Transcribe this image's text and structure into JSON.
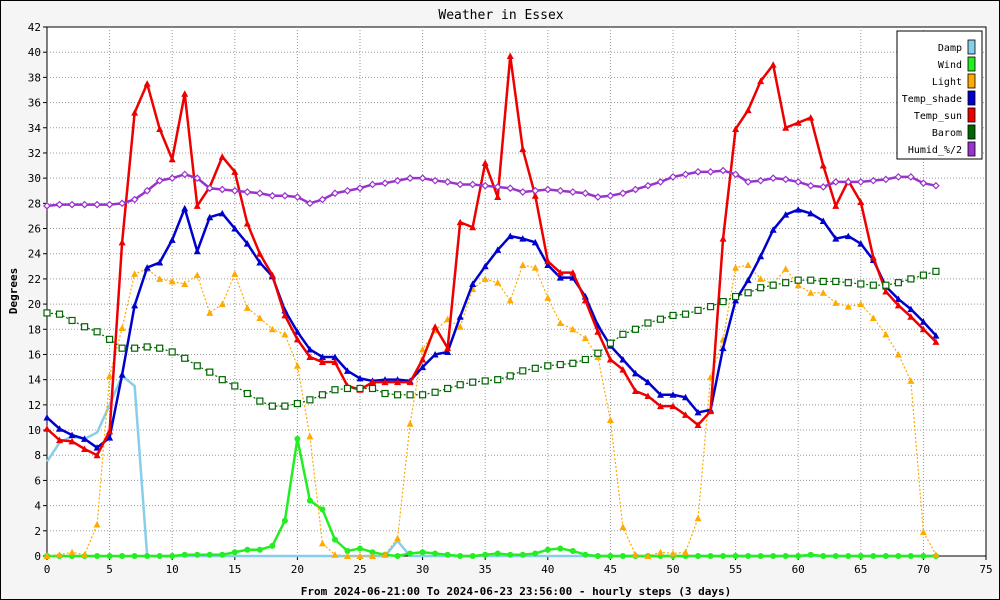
{
  "chart_data": {
    "type": "line",
    "title": "Weather in Essex",
    "xlabel": "From 2024-06-21:00 To 2024-06-23 23:56:00 - hourly steps (3 days)",
    "ylabel": "Degrees",
    "xlim": [
      0,
      75
    ],
    "ylim": [
      0,
      42
    ],
    "x_ticks": [
      0,
      5,
      10,
      15,
      20,
      25,
      30,
      35,
      40,
      45,
      50,
      55,
      60,
      65,
      70,
      75
    ],
    "y_ticks": [
      0,
      2,
      4,
      6,
      8,
      10,
      12,
      14,
      16,
      18,
      20,
      22,
      24,
      26,
      28,
      30,
      32,
      34,
      36,
      38,
      40,
      42
    ],
    "grid": true,
    "legend_position": "top-right",
    "series": [
      {
        "name": "Damp",
        "color": "#87ceeb",
        "marker": "none",
        "x": [
          0,
          1,
          2,
          3,
          4,
          5,
          6,
          7,
          8,
          9,
          10,
          11,
          12,
          13,
          14,
          15,
          16,
          17,
          18,
          19,
          20,
          21,
          22,
          23,
          24,
          25,
          26,
          27,
          28,
          29,
          30,
          31,
          32,
          33,
          34,
          35,
          36,
          37,
          38,
          39,
          40,
          41,
          42,
          43,
          44,
          45,
          46,
          47,
          48,
          49,
          50,
          51,
          52,
          53,
          54,
          55,
          56,
          57,
          58,
          59,
          60,
          61,
          62,
          63,
          64,
          65,
          66,
          67,
          68,
          69,
          70,
          71
        ],
        "values": [
          7.5,
          9.0,
          9.5,
          9.3,
          9.8,
          12.0,
          14.3,
          13.5,
          0,
          0,
          0,
          0,
          0,
          0,
          0,
          0,
          0,
          0,
          0,
          0,
          0,
          0,
          0,
          0,
          0,
          0,
          0,
          0,
          1.2,
          0,
          0,
          0,
          0,
          0,
          0,
          0,
          0,
          0,
          0,
          0,
          0,
          0,
          0,
          0,
          0,
          0,
          0,
          0,
          0,
          0,
          0,
          0,
          0,
          0,
          0,
          0,
          0,
          0,
          0,
          0,
          0,
          0,
          0,
          0,
          0,
          0,
          0,
          0,
          0,
          0,
          0,
          0
        ]
      },
      {
        "name": "Wind",
        "color": "#22ee22",
        "marker": "circle",
        "x": [
          0,
          1,
          2,
          3,
          4,
          5,
          6,
          7,
          8,
          9,
          10,
          11,
          12,
          13,
          14,
          15,
          16,
          17,
          18,
          19,
          20,
          21,
          22,
          23,
          24,
          25,
          26,
          27,
          28,
          29,
          30,
          31,
          32,
          33,
          34,
          35,
          36,
          37,
          38,
          39,
          40,
          41,
          42,
          43,
          44,
          45,
          46,
          47,
          48,
          49,
          50,
          51,
          52,
          53,
          54,
          55,
          56,
          57,
          58,
          59,
          60,
          61,
          62,
          63,
          64,
          65,
          66,
          67,
          68,
          69,
          70,
          71
        ],
        "values": [
          0,
          0,
          0,
          0,
          0,
          0,
          0,
          0,
          0,
          0,
          0,
          0.1,
          0.1,
          0.1,
          0.1,
          0.3,
          0.5,
          0.5,
          0.8,
          2.8,
          9.3,
          4.4,
          3.7,
          1.3,
          0.4,
          0.6,
          0.3,
          0.1,
          0,
          0.2,
          0.3,
          0.2,
          0.1,
          0,
          0,
          0.1,
          0.2,
          0.1,
          0.1,
          0.2,
          0.5,
          0.6,
          0.4,
          0.1,
          0,
          0,
          0,
          0,
          0,
          0,
          0,
          0,
          0,
          0,
          0,
          0,
          0,
          0,
          0,
          0,
          0,
          0.1,
          0,
          0,
          0,
          0,
          0,
          0,
          0,
          0,
          0,
          0
        ]
      },
      {
        "name": "Light",
        "color": "#ffaa00",
        "marker": "triangle",
        "x": [
          0,
          1,
          2,
          3,
          4,
          5,
          6,
          7,
          8,
          9,
          10,
          11,
          12,
          13,
          14,
          15,
          16,
          17,
          18,
          19,
          20,
          21,
          22,
          23,
          24,
          25,
          26,
          27,
          28,
          29,
          30,
          31,
          32,
          33,
          34,
          35,
          36,
          37,
          38,
          39,
          40,
          41,
          42,
          43,
          44,
          45,
          46,
          47,
          48,
          49,
          50,
          51,
          52,
          53,
          54,
          55,
          56,
          57,
          58,
          59,
          60,
          61,
          62,
          63,
          64,
          65,
          66,
          67,
          68,
          69,
          70,
          71
        ],
        "values": [
          0,
          0.1,
          0.3,
          0.1,
          2.5,
          14.3,
          18.1,
          22.4,
          22.8,
          22.0,
          21.8,
          21.6,
          22.3,
          19.3,
          20.0,
          22.4,
          19.7,
          18.9,
          18.0,
          17.6,
          15.1,
          9.5,
          1.0,
          0.1,
          0,
          0,
          0,
          0.1,
          1.4,
          10.5,
          16.4,
          17.9,
          18.8,
          18.2,
          21.2,
          22.0,
          21.7,
          20.3,
          23.1,
          22.9,
          20.5,
          18.5,
          18.0,
          17.3,
          15.8,
          10.8,
          2.3,
          0.1,
          0,
          0.3,
          0.2,
          0.3,
          3.0,
          14.2,
          17.2,
          22.9,
          23.1,
          22.0,
          21.6,
          22.8,
          21.5,
          20.9,
          20.9,
          20.1,
          19.8,
          20.0,
          18.9,
          17.6,
          16.0,
          13.9,
          1.9,
          0.1
        ]
      },
      {
        "name": "Temp_shade",
        "color": "#0000cc",
        "marker": "triangle",
        "x": [
          0,
          1,
          2,
          3,
          4,
          5,
          6,
          7,
          8,
          9,
          10,
          11,
          12,
          13,
          14,
          15,
          16,
          17,
          18,
          19,
          20,
          21,
          22,
          23,
          24,
          25,
          26,
          27,
          28,
          29,
          30,
          31,
          32,
          33,
          34,
          35,
          36,
          37,
          38,
          39,
          40,
          41,
          42,
          43,
          44,
          45,
          46,
          47,
          48,
          49,
          50,
          51,
          52,
          53,
          54,
          55,
          56,
          57,
          58,
          59,
          60,
          61,
          62,
          63,
          64,
          65,
          66,
          67,
          68,
          69,
          70,
          71
        ],
        "values": [
          11.0,
          10.1,
          9.6,
          9.3,
          8.6,
          9.4,
          14.4,
          19.9,
          22.9,
          23.3,
          25.1,
          27.6,
          24.2,
          26.9,
          27.2,
          26.0,
          24.8,
          23.3,
          22.2,
          19.5,
          17.8,
          16.4,
          15.8,
          15.8,
          14.7,
          14.1,
          13.9,
          14.0,
          14.0,
          13.9,
          15.0,
          16.0,
          16.2,
          19.0,
          21.6,
          23.0,
          24.3,
          25.4,
          25.2,
          24.9,
          23.1,
          22.1,
          22.1,
          20.6,
          18.3,
          16.7,
          15.6,
          14.5,
          13.8,
          12.8,
          12.8,
          12.6,
          11.4,
          11.6,
          16.5,
          20.3,
          21.9,
          23.8,
          25.9,
          27.1,
          27.5,
          27.2,
          26.6,
          25.2,
          25.4,
          24.8,
          23.5,
          21.4,
          20.4,
          19.6,
          18.6,
          17.5
        ]
      },
      {
        "name": "Temp_sun",
        "color": "#ee0000",
        "marker": "triangle",
        "x": [
          0,
          1,
          2,
          3,
          4,
          5,
          6,
          7,
          8,
          9,
          10,
          11,
          12,
          13,
          14,
          15,
          16,
          17,
          18,
          19,
          20,
          21,
          22,
          23,
          24,
          25,
          26,
          27,
          28,
          29,
          30,
          31,
          32,
          33,
          34,
          35,
          36,
          37,
          38,
          39,
          40,
          41,
          42,
          43,
          44,
          45,
          46,
          47,
          48,
          49,
          50,
          51,
          52,
          53,
          54,
          55,
          56,
          57,
          58,
          59,
          60,
          61,
          62,
          63,
          64,
          65,
          66,
          67,
          68,
          69,
          70,
          71
        ],
        "values": [
          10.1,
          9.2,
          9.1,
          8.5,
          8.0,
          9.9,
          24.9,
          35.2,
          37.5,
          33.9,
          31.5,
          36.7,
          27.8,
          29.3,
          31.7,
          30.5,
          26.4,
          24.0,
          22.3,
          19.1,
          17.2,
          15.8,
          15.4,
          15.4,
          13.5,
          13.2,
          13.8,
          13.8,
          13.8,
          13.8,
          15.6,
          18.2,
          16.5,
          26.5,
          26.1,
          31.2,
          28.5,
          39.7,
          32.3,
          28.6,
          23.4,
          22.5,
          22.5,
          20.3,
          17.8,
          15.6,
          14.8,
          13.1,
          12.7,
          11.9,
          11.9,
          11.2,
          10.4,
          11.5,
          25.2,
          33.9,
          35.4,
          37.7,
          39.0,
          34.0,
          34.4,
          34.8,
          31.0,
          27.8,
          29.8,
          28.1,
          23.7,
          21.0,
          19.9,
          19.0,
          18.0,
          17.0
        ]
      },
      {
        "name": "Barom",
        "color": "#006600",
        "marker": "square",
        "x": [
          0,
          1,
          2,
          3,
          4,
          5,
          6,
          7,
          8,
          9,
          10,
          11,
          12,
          13,
          14,
          15,
          16,
          17,
          18,
          19,
          20,
          21,
          22,
          23,
          24,
          25,
          26,
          27,
          28,
          29,
          30,
          31,
          32,
          33,
          34,
          35,
          36,
          37,
          38,
          39,
          40,
          41,
          42,
          43,
          44,
          45,
          46,
          47,
          48,
          49,
          50,
          51,
          52,
          53,
          54,
          55,
          56,
          57,
          58,
          59,
          60,
          61,
          62,
          63,
          64,
          65,
          66,
          67,
          68,
          69,
          70,
          71
        ],
        "values": [
          19.3,
          19.2,
          18.7,
          18.2,
          17.8,
          17.2,
          16.5,
          16.5,
          16.6,
          16.5,
          16.2,
          15.7,
          15.1,
          14.6,
          14.0,
          13.5,
          12.9,
          12.3,
          11.9,
          11.9,
          12.1,
          12.4,
          12.8,
          13.2,
          13.3,
          13.3,
          13.3,
          12.9,
          12.8,
          12.8,
          12.8,
          13.0,
          13.3,
          13.6,
          13.8,
          13.9,
          14.0,
          14.3,
          14.7,
          14.9,
          15.1,
          15.2,
          15.3,
          15.6,
          16.1,
          16.9,
          17.6,
          18.0,
          18.5,
          18.8,
          19.1,
          19.2,
          19.5,
          19.8,
          20.2,
          20.6,
          20.9,
          21.3,
          21.5,
          21.7,
          21.9,
          21.9,
          21.8,
          21.8,
          21.7,
          21.6,
          21.5,
          21.5,
          21.7,
          22.0,
          22.3,
          22.6
        ]
      },
      {
        "name": "Humid_%/2",
        "color": "#9933cc",
        "marker": "diamond",
        "x": [
          0,
          1,
          2,
          3,
          4,
          5,
          6,
          7,
          8,
          9,
          10,
          11,
          12,
          13,
          14,
          15,
          16,
          17,
          18,
          19,
          20,
          21,
          22,
          23,
          24,
          25,
          26,
          27,
          28,
          29,
          30,
          31,
          32,
          33,
          34,
          35,
          36,
          37,
          38,
          39,
          40,
          41,
          42,
          43,
          44,
          45,
          46,
          47,
          48,
          49,
          50,
          51,
          52,
          53,
          54,
          55,
          56,
          57,
          58,
          59,
          60,
          61,
          62,
          63,
          64,
          65,
          66,
          67,
          68,
          69,
          70,
          71
        ],
        "values": [
          27.8,
          27.9,
          27.9,
          27.9,
          27.9,
          27.9,
          28.0,
          28.3,
          29.0,
          29.8,
          30.0,
          30.3,
          30.0,
          29.2,
          29.1,
          29.0,
          28.9,
          28.8,
          28.6,
          28.6,
          28.5,
          28.0,
          28.3,
          28.8,
          29.0,
          29.2,
          29.5,
          29.6,
          29.8,
          30.0,
          30.0,
          29.8,
          29.7,
          29.5,
          29.5,
          29.4,
          29.3,
          29.2,
          28.9,
          29.0,
          29.1,
          29.0,
          28.9,
          28.8,
          28.5,
          28.6,
          28.8,
          29.1,
          29.4,
          29.7,
          30.1,
          30.3,
          30.5,
          30.5,
          30.6,
          30.3,
          29.7,
          29.8,
          30.0,
          29.9,
          29.7,
          29.4,
          29.3,
          29.7,
          29.7,
          29.7,
          29.8,
          29.9,
          30.1,
          30.1,
          29.6,
          29.4
        ]
      }
    ]
  }
}
